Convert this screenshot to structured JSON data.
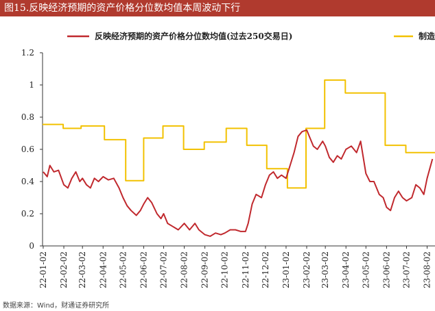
{
  "header": {
    "title": "图15.反映经济预期的资产价格分位数均值本周波动下行"
  },
  "source": {
    "text": "数据来源：Wind，财通证券研究所"
  },
  "colors": {
    "title_bg": "#b03a2e",
    "series_red": "#c0282d",
    "series_yellow": "#f2c100"
  },
  "chart_data": {
    "type": "line",
    "title": "图15.反映经济预期的资产价格分位数均值本周波动下行",
    "xlabel": "",
    "ylabel": "",
    "ylim": [
      0,
      1.2
    ],
    "yticks": [
      "0",
      "0.2",
      "0.4",
      "0.6",
      "0.8",
      "1",
      "1.2"
    ],
    "xlim": [
      "2022-01-01",
      "2023-08-20"
    ],
    "xticks": [
      "22-01-02",
      "22-02-02",
      "22-03-02",
      "22-04-02",
      "22-05-02",
      "22-06-02",
      "22-07-02",
      "22-08-02",
      "22-09-02",
      "22-10-02",
      "22-11-02",
      "22-12-02",
      "23-01-02",
      "23-02-02",
      "23-03-02",
      "23-04-02",
      "23-05-02",
      "23-06-02",
      "23-07-02",
      "23-08-02"
    ],
    "grid": false,
    "legend": "top",
    "series": [
      {
        "name": "反映经济预期的资产价格分位数均值(过去250交易日)",
        "color": "#c0282d",
        "points": [
          [
            "2022-01-02",
            0.46
          ],
          [
            "2022-01-08",
            0.43
          ],
          [
            "2022-01-12",
            0.5
          ],
          [
            "2022-01-18",
            0.46
          ],
          [
            "2022-01-25",
            0.47
          ],
          [
            "2022-02-02",
            0.38
          ],
          [
            "2022-02-08",
            0.36
          ],
          [
            "2022-02-14",
            0.42
          ],
          [
            "2022-02-20",
            0.46
          ],
          [
            "2022-02-26",
            0.4
          ],
          [
            "2022-03-02",
            0.42
          ],
          [
            "2022-03-08",
            0.38
          ],
          [
            "2022-03-14",
            0.36
          ],
          [
            "2022-03-20",
            0.42
          ],
          [
            "2022-03-26",
            0.4
          ],
          [
            "2022-04-02",
            0.43
          ],
          [
            "2022-04-10",
            0.41
          ],
          [
            "2022-04-18",
            0.42
          ],
          [
            "2022-04-26",
            0.36
          ],
          [
            "2022-05-02",
            0.3
          ],
          [
            "2022-05-08",
            0.25
          ],
          [
            "2022-05-14",
            0.22
          ],
          [
            "2022-05-22",
            0.19
          ],
          [
            "2022-05-28",
            0.22
          ],
          [
            "2022-06-02",
            0.26
          ],
          [
            "2022-06-08",
            0.3
          ],
          [
            "2022-06-14",
            0.27
          ],
          [
            "2022-06-22",
            0.2
          ],
          [
            "2022-06-28",
            0.17
          ],
          [
            "2022-07-02",
            0.2
          ],
          [
            "2022-07-08",
            0.14
          ],
          [
            "2022-07-16",
            0.12
          ],
          [
            "2022-07-24",
            0.1
          ],
          [
            "2022-08-02",
            0.14
          ],
          [
            "2022-08-10",
            0.1
          ],
          [
            "2022-08-18",
            0.14
          ],
          [
            "2022-08-24",
            0.1
          ],
          [
            "2022-09-02",
            0.07
          ],
          [
            "2022-09-10",
            0.06
          ],
          [
            "2022-09-18",
            0.08
          ],
          [
            "2022-09-26",
            0.07
          ],
          [
            "2022-10-02",
            0.08
          ],
          [
            "2022-10-10",
            0.1
          ],
          [
            "2022-10-18",
            0.1
          ],
          [
            "2022-10-26",
            0.09
          ],
          [
            "2022-11-02",
            0.09
          ],
          [
            "2022-11-06",
            0.14
          ],
          [
            "2022-11-12",
            0.26
          ],
          [
            "2022-11-18",
            0.32
          ],
          [
            "2022-11-26",
            0.3
          ],
          [
            "2022-12-02",
            0.38
          ],
          [
            "2022-12-08",
            0.44
          ],
          [
            "2022-12-14",
            0.46
          ],
          [
            "2022-12-20",
            0.42
          ],
          [
            "2022-12-26",
            0.44
          ],
          [
            "2023-01-02",
            0.42
          ],
          [
            "2023-01-08",
            0.5
          ],
          [
            "2023-01-14",
            0.58
          ],
          [
            "2023-01-20",
            0.68
          ],
          [
            "2023-01-26",
            0.71
          ],
          [
            "2023-02-02",
            0.72
          ],
          [
            "2023-02-06",
            0.68
          ],
          [
            "2023-02-12",
            0.62
          ],
          [
            "2023-02-18",
            0.6
          ],
          [
            "2023-02-26",
            0.65
          ],
          [
            "2023-03-02",
            0.62
          ],
          [
            "2023-03-08",
            0.55
          ],
          [
            "2023-03-14",
            0.52
          ],
          [
            "2023-03-20",
            0.56
          ],
          [
            "2023-03-26",
            0.54
          ],
          [
            "2023-04-02",
            0.6
          ],
          [
            "2023-04-10",
            0.62
          ],
          [
            "2023-04-18",
            0.58
          ],
          [
            "2023-04-24",
            0.65
          ],
          [
            "2023-05-02",
            0.45
          ],
          [
            "2023-05-08",
            0.4
          ],
          [
            "2023-05-14",
            0.4
          ],
          [
            "2023-05-22",
            0.32
          ],
          [
            "2023-05-28",
            0.3
          ],
          [
            "2023-06-02",
            0.24
          ],
          [
            "2023-06-08",
            0.22
          ],
          [
            "2023-06-14",
            0.3
          ],
          [
            "2023-06-20",
            0.34
          ],
          [
            "2023-06-26",
            0.3
          ],
          [
            "2023-07-02",
            0.28
          ],
          [
            "2023-07-10",
            0.3
          ],
          [
            "2023-07-16",
            0.38
          ],
          [
            "2023-07-22",
            0.36
          ],
          [
            "2023-07-28",
            0.32
          ],
          [
            "2023-08-02",
            0.42
          ],
          [
            "2023-08-06",
            0.48
          ],
          [
            "2023-08-10",
            0.54
          ]
        ]
      },
      {
        "name": "制造",
        "color": "#f2c100",
        "points": [
          [
            "2022-01-01",
            0.755
          ],
          [
            "2022-02-01",
            0.755
          ],
          [
            "2022-02-01",
            0.73
          ],
          [
            "2022-02-28",
            0.73
          ],
          [
            "2022-02-28",
            0.745
          ],
          [
            "2022-04-04",
            0.745
          ],
          [
            "2022-04-04",
            0.66
          ],
          [
            "2022-05-06",
            0.66
          ],
          [
            "2022-05-06",
            0.405
          ],
          [
            "2022-06-02",
            0.405
          ],
          [
            "2022-06-02",
            0.67
          ],
          [
            "2022-07-01",
            0.67
          ],
          [
            "2022-07-01",
            0.745
          ],
          [
            "2022-08-01",
            0.745
          ],
          [
            "2022-08-01",
            0.6
          ],
          [
            "2022-09-01",
            0.6
          ],
          [
            "2022-09-01",
            0.645
          ],
          [
            "2022-10-04",
            0.645
          ],
          [
            "2022-10-04",
            0.73
          ],
          [
            "2022-11-04",
            0.73
          ],
          [
            "2022-11-04",
            0.625
          ],
          [
            "2022-12-04",
            0.625
          ],
          [
            "2022-12-04",
            0.48
          ],
          [
            "2023-01-04",
            0.48
          ],
          [
            "2023-01-04",
            0.36
          ],
          [
            "2023-02-01",
            0.36
          ],
          [
            "2023-02-01",
            0.73
          ],
          [
            "2023-03-01",
            0.73
          ],
          [
            "2023-03-01",
            1.03
          ],
          [
            "2023-04-01",
            1.03
          ],
          [
            "2023-04-01",
            0.95
          ],
          [
            "2023-05-31",
            0.95
          ],
          [
            "2023-05-31",
            0.625
          ],
          [
            "2023-07-01",
            0.625
          ],
          [
            "2023-07-01",
            0.58
          ],
          [
            "2023-08-20",
            0.58
          ]
        ]
      }
    ]
  }
}
